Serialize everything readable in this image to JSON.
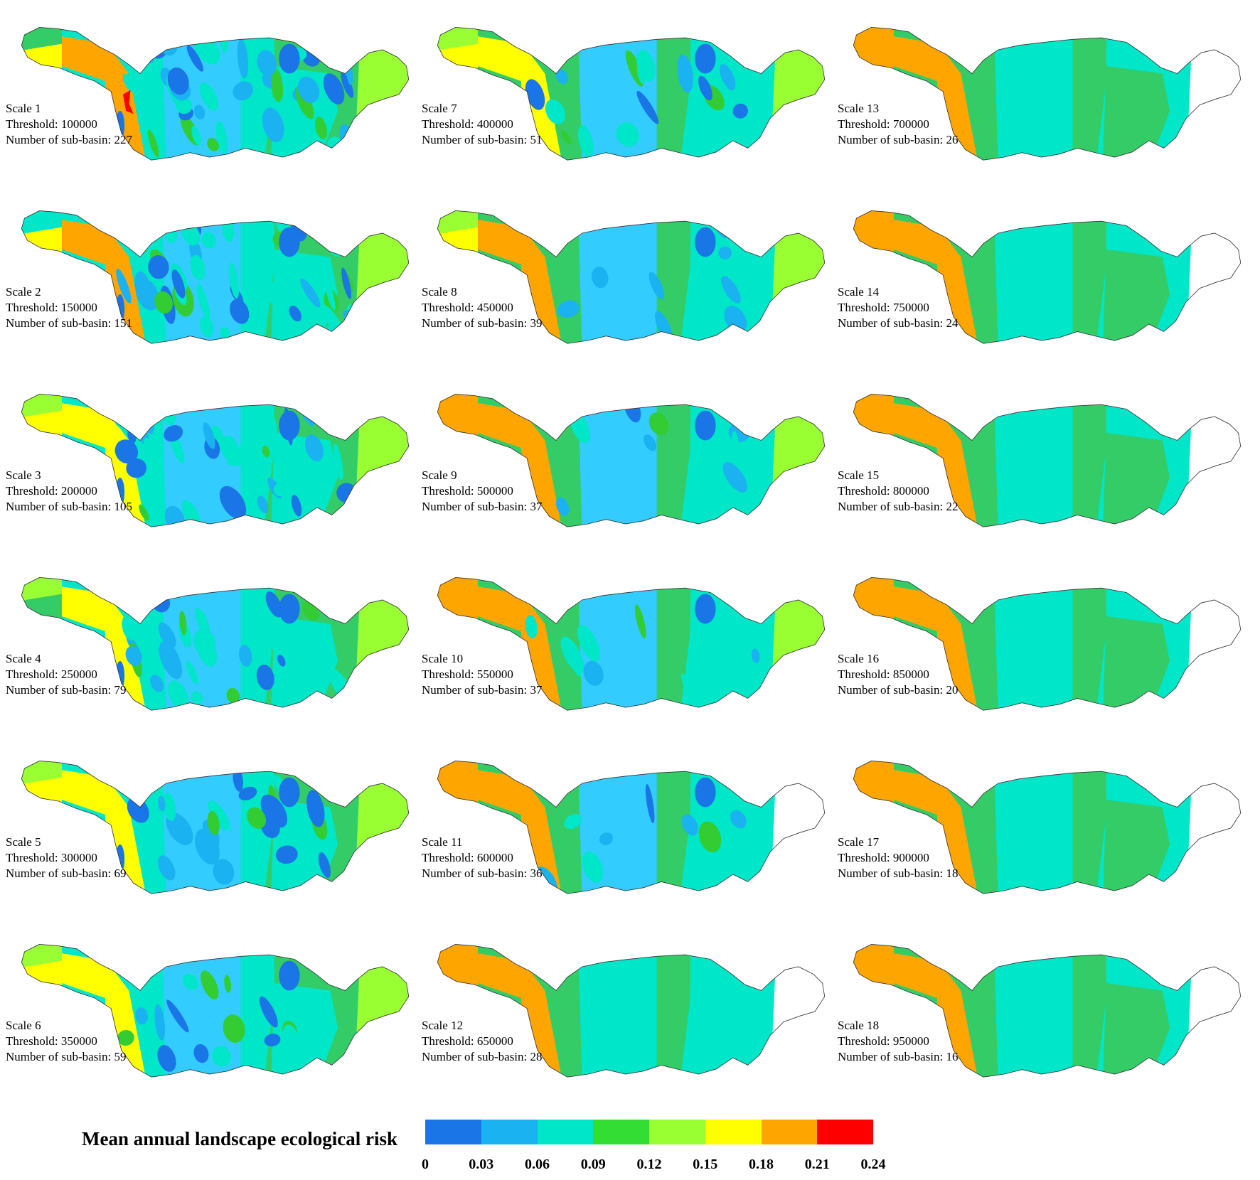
{
  "panels": [
    {
      "id": 1,
      "scale": "Scale 1",
      "threshold": "Threshold: 100000",
      "subbasins": "Number of sub-basin: 227",
      "detail": 5,
      "colors": {
        "west": "#33cc66",
        "head": "#ffff00",
        "upper": "#ffa500",
        "central": "#33ccff",
        "mid": "#00e6c8",
        "east": "#33cc66",
        "tip": "#99ff33",
        "lower": "#00e6c8"
      }
    },
    {
      "id": 2,
      "scale": "Scale 2",
      "threshold": "Threshold: 150000",
      "subbasins": "Number of sub-basin: 151",
      "detail": 5,
      "colors": {
        "west": "#00e6c8",
        "head": "#ffff00",
        "upper": "#ffa500",
        "central": "#33ccff",
        "mid": "#00e6c8",
        "east": "#33cc66",
        "tip": "#99ff33",
        "lower": "#00e6c8"
      }
    },
    {
      "id": 3,
      "scale": "Scale 3",
      "threshold": "Threshold: 200000",
      "subbasins": "Number of sub-basin: 105",
      "detail": 4,
      "colors": {
        "west": "#99ff33",
        "head": "#ffff00",
        "upper": "#ffff00",
        "central": "#33ccff",
        "mid": "#00e6c8",
        "east": "#33cc66",
        "tip": "#99ff33",
        "lower": "#00e6c8"
      }
    },
    {
      "id": 4,
      "scale": "Scale 4",
      "threshold": "Threshold: 250000",
      "subbasins": "Number of sub-basin: 79",
      "detail": 3,
      "colors": {
        "west": "#99ff33",
        "head": "#33cc66",
        "upper": "#ffff00",
        "central": "#33ccff",
        "mid": "#00e6c8",
        "east": "#33cc66",
        "tip": "#99ff33",
        "lower": "#00e6c8"
      }
    },
    {
      "id": 5,
      "scale": "Scale 5",
      "threshold": "Threshold: 300000",
      "subbasins": "Number of sub-basin: 69",
      "detail": 3,
      "colors": {
        "west": "#99ff33",
        "head": "#ffff00",
        "upper": "#ffff00",
        "central": "#33ccff",
        "mid": "#00e6c8",
        "east": "#33cc66",
        "tip": "#99ff33",
        "lower": "#00e6c8"
      }
    },
    {
      "id": 6,
      "scale": "Scale 6",
      "threshold": "Threshold: 350000",
      "subbasins": "Number of sub-basin: 59",
      "detail": 2,
      "colors": {
        "west": "#99ff33",
        "head": "#ffff00",
        "upper": "#ffff00",
        "central": "#33ccff",
        "mid": "#00e6c8",
        "east": "#33cc66",
        "tip": "#99ff33",
        "lower": "#00e6c8"
      }
    },
    {
      "id": 7,
      "scale": "Scale 7",
      "threshold": "Threshold: 400000",
      "subbasins": "Number of sub-basin: 51",
      "detail": 2,
      "colors": {
        "west": "#99ff33",
        "head": "#ffff00",
        "upper": "#ffff00",
        "central": "#33ccff",
        "mid": "#33cc66",
        "east": "#00e6c8",
        "tip": "#99ff33",
        "lower": "#00e6c8"
      }
    },
    {
      "id": 8,
      "scale": "Scale 8",
      "threshold": "Threshold: 450000",
      "subbasins": "Number of sub-basin: 39",
      "detail": 1,
      "colors": {
        "west": "#99ff33",
        "head": "#ffff00",
        "upper": "#ffa500",
        "central": "#33ccff",
        "mid": "#33cc66",
        "east": "#00e6c8",
        "tip": "#99ff33",
        "lower": "#00e6c8"
      }
    },
    {
      "id": 9,
      "scale": "Scale 9",
      "threshold": "Threshold: 500000",
      "subbasins": "Number of sub-basin: 37",
      "detail": 1,
      "colors": {
        "west": "#ffa500",
        "head": "#ffa500",
        "upper": "#ffa500",
        "central": "#33ccff",
        "mid": "#33cc66",
        "east": "#00e6c8",
        "tip": "#99ff33",
        "lower": "#00e6c8"
      }
    },
    {
      "id": 10,
      "scale": "Scale 10",
      "threshold": "Threshold: 550000",
      "subbasins": "Number of sub-basin: 37",
      "detail": 1,
      "colors": {
        "west": "#ffa500",
        "head": "#ffa500",
        "upper": "#ffa500",
        "central": "#33ccff",
        "mid": "#33cc66",
        "east": "#00e6c8",
        "tip": "#99ff33",
        "lower": "#00e6c8"
      }
    },
    {
      "id": 11,
      "scale": "Scale 11",
      "threshold": "Threshold: 600000",
      "subbasins": "Number of sub-basin: 36",
      "detail": 1,
      "colors": {
        "west": "#ffa500",
        "head": "#ffa500",
        "upper": "#ffa500",
        "central": "#33ccff",
        "mid": "#33cc66",
        "east": "#00e6c8",
        "tip": "#ffffff",
        "lower": "#00e6c8"
      }
    },
    {
      "id": 12,
      "scale": "Scale 12",
      "threshold": "Threshold: 650000",
      "subbasins": "Number of sub-basin: 28",
      "detail": 0,
      "colors": {
        "west": "#ffa500",
        "head": "#ffa500",
        "upper": "#ffa500",
        "central": "#00e6c8",
        "mid": "#33cc66",
        "east": "#00e6c8",
        "tip": "#ffffff",
        "lower": "#00e6c8"
      }
    },
    {
      "id": 13,
      "scale": "Scale 13",
      "threshold": "Threshold: 700000",
      "subbasins": "Number of sub-basin: 26",
      "detail": 0,
      "colors": {
        "west": "#ffa500",
        "head": "#ffa500",
        "upper": "#ffa500",
        "central": "#00e6c8",
        "mid": "#33cc66",
        "east": "#00e6c8",
        "tip": "#ffffff",
        "lower": "#33cc66"
      }
    },
    {
      "id": 14,
      "scale": "Scale 14",
      "threshold": "Threshold: 750000",
      "subbasins": "Number of sub-basin: 24",
      "detail": 0,
      "colors": {
        "west": "#ffa500",
        "head": "#ffa500",
        "upper": "#ffa500",
        "central": "#00e6c8",
        "mid": "#33cc66",
        "east": "#00e6c8",
        "tip": "#ffffff",
        "lower": "#33cc66"
      }
    },
    {
      "id": 15,
      "scale": "Scale 15",
      "threshold": "Threshold: 800000",
      "subbasins": "Number of sub-basin: 22",
      "detail": 0,
      "colors": {
        "west": "#ffa500",
        "head": "#ffa500",
        "upper": "#ffa500",
        "central": "#00e6c8",
        "mid": "#33cc66",
        "east": "#00e6c8",
        "tip": "#ffffff",
        "lower": "#33cc66"
      }
    },
    {
      "id": 16,
      "scale": "Scale 16",
      "threshold": "Threshold: 850000",
      "subbasins": "Number of sub-basin: 20",
      "detail": 0,
      "colors": {
        "west": "#ffa500",
        "head": "#ffa500",
        "upper": "#ffa500",
        "central": "#00e6c8",
        "mid": "#33cc66",
        "east": "#00e6c8",
        "tip": "#ffffff",
        "lower": "#33cc66"
      }
    },
    {
      "id": 17,
      "scale": "Scale 17",
      "threshold": "Threshold: 900000",
      "subbasins": "Number of sub-basin: 18",
      "detail": 0,
      "colors": {
        "west": "#ffa500",
        "head": "#ffa500",
        "upper": "#ffa500",
        "central": "#00e6c8",
        "mid": "#33cc66",
        "east": "#00e6c8",
        "tip": "#ffffff",
        "lower": "#33cc66"
      }
    },
    {
      "id": 18,
      "scale": "Scale 18",
      "threshold": "Threshold: 950000",
      "subbasins": "Number of sub-basin: 16",
      "detail": 0,
      "colors": {
        "west": "#ffa500",
        "head": "#ffa500",
        "upper": "#ffa500",
        "central": "#00e6c8",
        "mid": "#33cc66",
        "east": "#00e6c8",
        "tip": "#ffffff",
        "lower": "#33cc66"
      }
    }
  ],
  "legend": {
    "title": "Mean annual landscape ecological risk",
    "colors": [
      "#1a75e6",
      "#1ab2f0",
      "#00e6c8",
      "#33dd33",
      "#99ff33",
      "#ffff00",
      "#ffa500",
      "#ff0000"
    ],
    "ticks": [
      "0",
      "0.03",
      "0.06",
      "0.09",
      "0.12",
      "0.15",
      "0.18",
      "0.21",
      "0.24"
    ]
  }
}
